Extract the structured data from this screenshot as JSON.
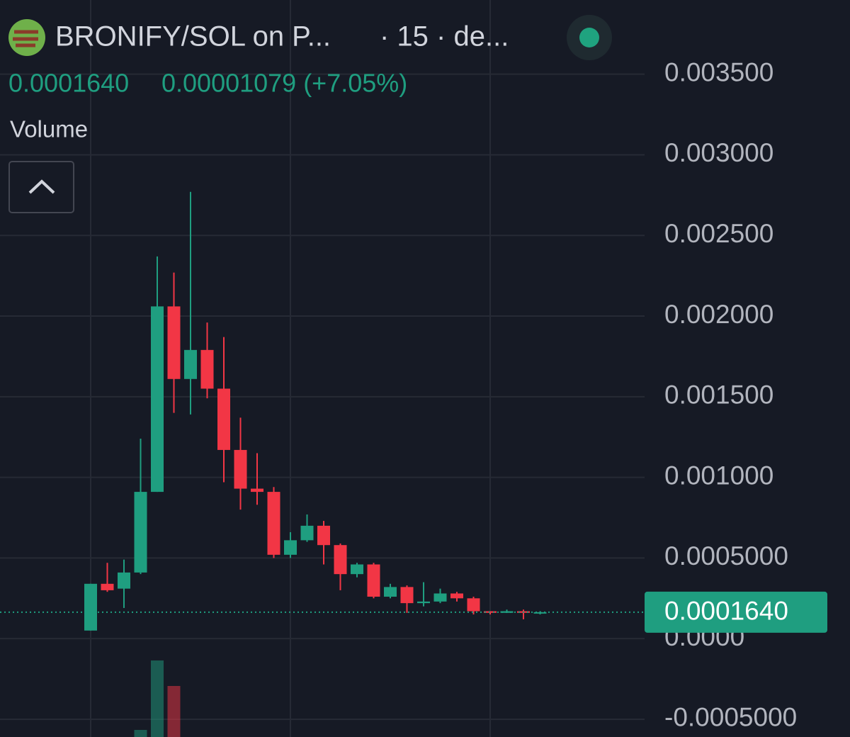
{
  "chart_data": {
    "type": "candlestick",
    "title": "BRONIFY/SOL on P...",
    "subtitle": "· 15 · de...",
    "last_price": {
      "value": 0.000164,
      "label": "0.0001640"
    },
    "change": "0.00001079 (+7.05%)",
    "volume_label": "Volume",
    "up_color": "#1f9e80",
    "down_color": "#f23645",
    "grid": true,
    "ylim": [
      -0.00061,
      0.00396
    ],
    "yticks": [
      {
        "value": 0.0035,
        "label": "0.003500"
      },
      {
        "value": 0.003,
        "label": "0.003000"
      },
      {
        "value": 0.0025,
        "label": "0.002500"
      },
      {
        "value": 0.002,
        "label": "0.002000"
      },
      {
        "value": 0.0015,
        "label": "0.001500"
      },
      {
        "value": 0.001,
        "label": "0.001000"
      },
      {
        "value": 0.0005,
        "label": "0.0005000"
      },
      {
        "value": 0,
        "label": "0.0000"
      },
      {
        "value": -0.0005,
        "label": "-0.0005000"
      }
    ],
    "open": [
      5e-05,
      0.00034,
      0.00031,
      0.00041,
      0.00091,
      0.00206,
      0.00161,
      0.00179,
      0.00155,
      0.00117,
      0.00093,
      0.00091,
      0.00052,
      0.00061,
      0.0007,
      0.00058,
      0.0004,
      0.00046,
      0.00026,
      0.00032,
      0.00022,
      0.00023,
      0.00028,
      0.00025,
      0.00017,
      0.00016,
      0.00017,
      0.00016
    ],
    "high": [
      0.00034,
      0.00047,
      0.00049,
      0.00124,
      0.00237,
      0.00227,
      0.00277,
      0.00196,
      0.00187,
      0.00137,
      0.00115,
      0.00094,
      0.00066,
      0.00077,
      0.00073,
      0.00059,
      0.00047,
      0.00047,
      0.00034,
      0.00033,
      0.00035,
      0.00031,
      0.00029,
      0.00026,
      0.00017,
      0.00018,
      0.00018,
      0.00017
    ],
    "low": [
      5e-05,
      0.00029,
      0.00019,
      0.0004,
      0.00091,
      0.0014,
      0.00139,
      0.00149,
      0.00097,
      0.0008,
      0.00083,
      0.0005,
      0.0005,
      0.0006,
      0.00046,
      0.0003,
      0.00038,
      0.00025,
      0.00025,
      0.00016,
      0.0002,
      0.00022,
      0.00023,
      0.00015,
      0.00015,
      0.00016,
      0.00012,
      0.00015
    ],
    "close": [
      0.00034,
      0.0003,
      0.00041,
      0.00091,
      0.00206,
      0.00161,
      0.00179,
      0.00155,
      0.00117,
      0.00093,
      0.00091,
      0.00052,
      0.00061,
      0.0007,
      0.00058,
      0.0004,
      0.00046,
      0.00026,
      0.00032,
      0.00022,
      0.00023,
      0.00028,
      0.00025,
      0.00017,
      0.00016,
      0.00017,
      0.00016,
      0.000164
    ],
    "volume": [
      null,
      null,
      null,
      10,
      108,
      72,
      null,
      null,
      null,
      null,
      null,
      null,
      null,
      null,
      null,
      null,
      null,
      null,
      null,
      null,
      null,
      null,
      null,
      null,
      null,
      null,
      null,
      null
    ]
  }
}
